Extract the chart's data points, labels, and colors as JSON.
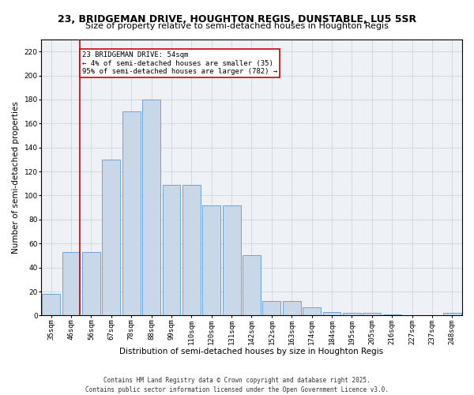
{
  "title": "23, BRIDGEMAN DRIVE, HOUGHTON REGIS, DUNSTABLE, LU5 5SR",
  "subtitle": "Size of property relative to semi-detached houses in Houghton Regis",
  "xlabel": "Distribution of semi-detached houses by size in Houghton Regis",
  "ylabel": "Number of semi-detached properties",
  "categories": [
    "35sqm",
    "46sqm",
    "56sqm",
    "67sqm",
    "78sqm",
    "88sqm",
    "99sqm",
    "110sqm",
    "120sqm",
    "131sqm",
    "142sqm",
    "152sqm",
    "163sqm",
    "174sqm",
    "184sqm",
    "195sqm",
    "205sqm",
    "216sqm",
    "227sqm",
    "237sqm",
    "248sqm"
  ],
  "values": [
    18,
    53,
    53,
    130,
    170,
    180,
    109,
    109,
    92,
    92,
    50,
    12,
    12,
    7,
    3,
    2,
    2,
    1,
    0,
    0,
    2
  ],
  "bar_color": "#c8d8e8",
  "bar_edge_color": "#5b9bd5",
  "annotation_text": "23 BRIDGEMAN DRIVE: 54sqm\n← 4% of semi-detached houses are smaller (35)\n95% of semi-detached houses are larger (782) →",
  "annotation_box_color": "#ffffff",
  "annotation_box_edge_color": "#cc0000",
  "red_line_color": "#cc0000",
  "ylim": [
    0,
    230
  ],
  "yticks": [
    0,
    20,
    40,
    60,
    80,
    100,
    120,
    140,
    160,
    180,
    200,
    220
  ],
  "footer_line1": "Contains HM Land Registry data © Crown copyright and database right 2025.",
  "footer_line2": "Contains public sector information licensed under the Open Government Licence v3.0.",
  "title_fontsize": 9,
  "xlabel_fontsize": 7.5,
  "ylabel_fontsize": 7.5,
  "tick_fontsize": 6.5,
  "annotation_fontsize": 6.5,
  "footer_fontsize": 5.5,
  "bg_color": "#eef2f7"
}
